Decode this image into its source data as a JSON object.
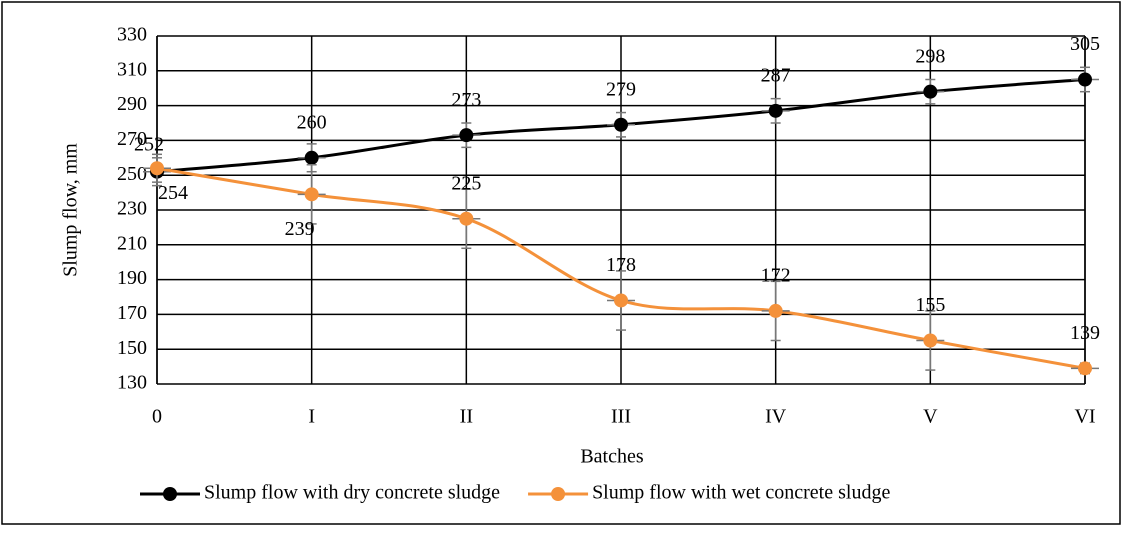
{
  "chart_data": {
    "type": "line",
    "x_label": "Batches",
    "y_label": "Slump flow, mm",
    "categories": [
      "0",
      "I",
      "II",
      "III",
      "IV",
      "V",
      "VI"
    ],
    "series": [
      {
        "name": "Slump flow with dry concrete sludge",
        "color": "#000000",
        "values": [
          252,
          260,
          273,
          279,
          287,
          298,
          305
        ],
        "errors": [
          8,
          8,
          7,
          7,
          7,
          7,
          7
        ]
      },
      {
        "name": "Slump flow with wet concrete sludge",
        "color": "#f4913a",
        "values": [
          254,
          239,
          225,
          178,
          172,
          155,
          139
        ],
        "errors": [
          8,
          17,
          17,
          17,
          17,
          17,
          3
        ]
      }
    ],
    "ylim": [
      130,
      330
    ],
    "yticks": [
      130,
      150,
      170,
      190,
      210,
      230,
      250,
      270,
      290,
      310,
      330
    ],
    "grid": true,
    "legend": "bottom"
  }
}
